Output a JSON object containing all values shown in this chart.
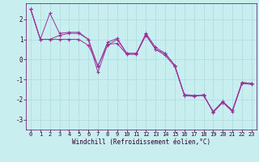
{
  "xlabel": "Windchill (Refroidissement éolien,°C)",
  "background_color": "#c8eef0",
  "grid_color": "#a8dce0",
  "line_color": "#993399",
  "xlim": [
    -0.5,
    23.5
  ],
  "ylim": [
    -3.5,
    2.8
  ],
  "yticks": [
    -3,
    -2,
    -1,
    0,
    1,
    2
  ],
  "xticks": [
    0,
    1,
    2,
    3,
    4,
    5,
    6,
    7,
    8,
    9,
    10,
    11,
    12,
    13,
    14,
    15,
    16,
    17,
    18,
    19,
    20,
    21,
    22,
    23
  ],
  "series": [
    {
      "x": [
        0,
        1,
        2,
        3,
        4,
        5,
        6,
        7,
        8,
        9,
        10,
        11,
        12,
        13,
        14,
        15,
        16,
        17,
        18,
        19,
        20,
        21,
        22,
        23
      ],
      "y": [
        2.5,
        1.0,
        1.0,
        1.2,
        1.3,
        1.3,
        1.0,
        -0.35,
        0.85,
        1.05,
        0.3,
        0.3,
        1.3,
        0.6,
        0.3,
        -0.3,
        -1.75,
        -1.8,
        -1.8,
        -2.6,
        -2.1,
        -2.55,
        -1.15,
        -1.2
      ]
    },
    {
      "x": [
        0,
        1,
        2,
        3,
        4,
        5,
        6,
        7,
        8,
        9,
        10,
        11,
        12,
        13,
        14,
        15,
        16,
        17,
        18,
        19,
        20,
        21,
        22,
        23
      ],
      "y": [
        2.5,
        1.0,
        2.3,
        1.3,
        1.35,
        1.35,
        1.0,
        -0.65,
        0.75,
        0.8,
        0.25,
        0.25,
        1.25,
        0.5,
        0.2,
        -0.35,
        -1.8,
        -1.85,
        -1.75,
        -2.65,
        -2.15,
        -2.6,
        -1.2,
        -1.25
      ]
    },
    {
      "x": [
        0,
        1,
        2,
        3,
        4,
        5,
        6,
        7,
        8,
        9,
        10,
        11,
        12,
        13,
        14,
        15,
        16,
        17,
        18,
        19,
        20,
        21,
        22,
        23
      ],
      "y": [
        2.5,
        1.0,
        1.0,
        1.0,
        1.0,
        1.0,
        0.7,
        -0.3,
        0.7,
        1.0,
        0.3,
        0.3,
        1.2,
        0.5,
        0.3,
        -0.3,
        -1.8,
        -1.8,
        -1.8,
        -2.6,
        -2.1,
        -2.55,
        -1.15,
        -1.2
      ]
    }
  ],
  "tick_fontsize": 5.0,
  "xlabel_fontsize": 5.5,
  "tick_color": "#330033",
  "spine_color": "#660066"
}
